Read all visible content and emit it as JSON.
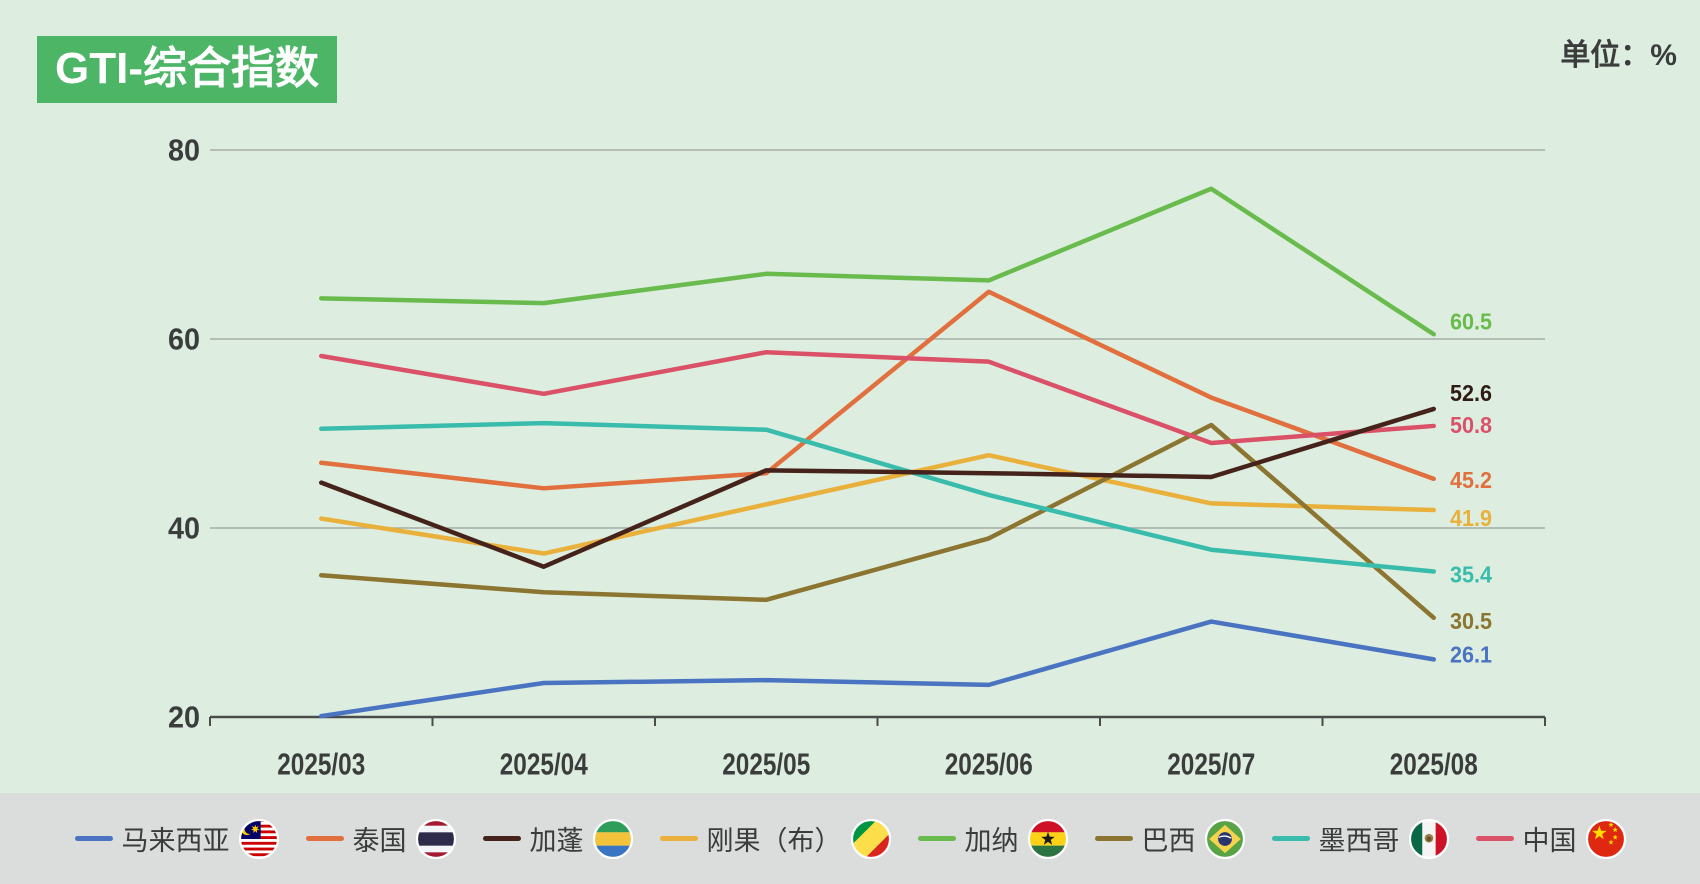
{
  "header": {
    "title": "GTI-综合指数",
    "unit_label": "单位：%"
  },
  "chart_data": {
    "type": "line",
    "title": "GTI-综合指数",
    "unit": "%",
    "categories": [
      "2025/03",
      "2025/04",
      "2025/05",
      "2025/06",
      "2025/07",
      "2025/08"
    ],
    "y_axis": {
      "ticks": [
        20,
        40,
        60,
        80
      ],
      "min": 20,
      "max": 80
    },
    "grid": true,
    "legend_position": "bottom",
    "series": [
      {
        "name": "马来西亚",
        "flag": "malaysia",
        "color": "#4a73c1",
        "values": [
          20.1,
          23.6,
          23.9,
          23.4,
          30.1,
          26.1
        ],
        "end_label": "26.1"
      },
      {
        "name": "泰国",
        "flag": "thailand",
        "color": "#e1703e",
        "values": [
          46.9,
          44.2,
          45.8,
          65.0,
          53.8,
          45.2
        ],
        "end_label": "45.2"
      },
      {
        "name": "加蓬",
        "flag": "gabon",
        "color": "#45231a",
        "values": [
          44.8,
          35.9,
          46.1,
          45.8,
          45.4,
          52.6
        ],
        "end_label": "52.6"
      },
      {
        "name": "刚果（布）",
        "flag": "congo",
        "color": "#e9b13c",
        "values": [
          41.0,
          37.3,
          42.5,
          47.7,
          42.6,
          41.9
        ],
        "end_label": "41.9"
      },
      {
        "name": "加纳",
        "flag": "ghana",
        "color": "#6abb4d",
        "values": [
          64.3,
          63.8,
          66.9,
          66.2,
          75.9,
          60.5
        ],
        "end_label": "60.5"
      },
      {
        "name": "巴西",
        "flag": "brazil",
        "color": "#8b7530",
        "values": [
          35.0,
          33.2,
          32.4,
          38.9,
          50.9,
          30.5
        ],
        "end_label": "30.5"
      },
      {
        "name": "墨西哥",
        "flag": "mexico",
        "color": "#39bcab",
        "values": [
          50.5,
          51.1,
          50.4,
          43.5,
          37.7,
          35.4
        ],
        "end_label": "35.4"
      },
      {
        "name": "中国",
        "flag": "china",
        "color": "#da5168",
        "values": [
          58.2,
          54.2,
          58.6,
          57.6,
          49.0,
          50.8
        ],
        "end_label": "50.8"
      }
    ]
  }
}
